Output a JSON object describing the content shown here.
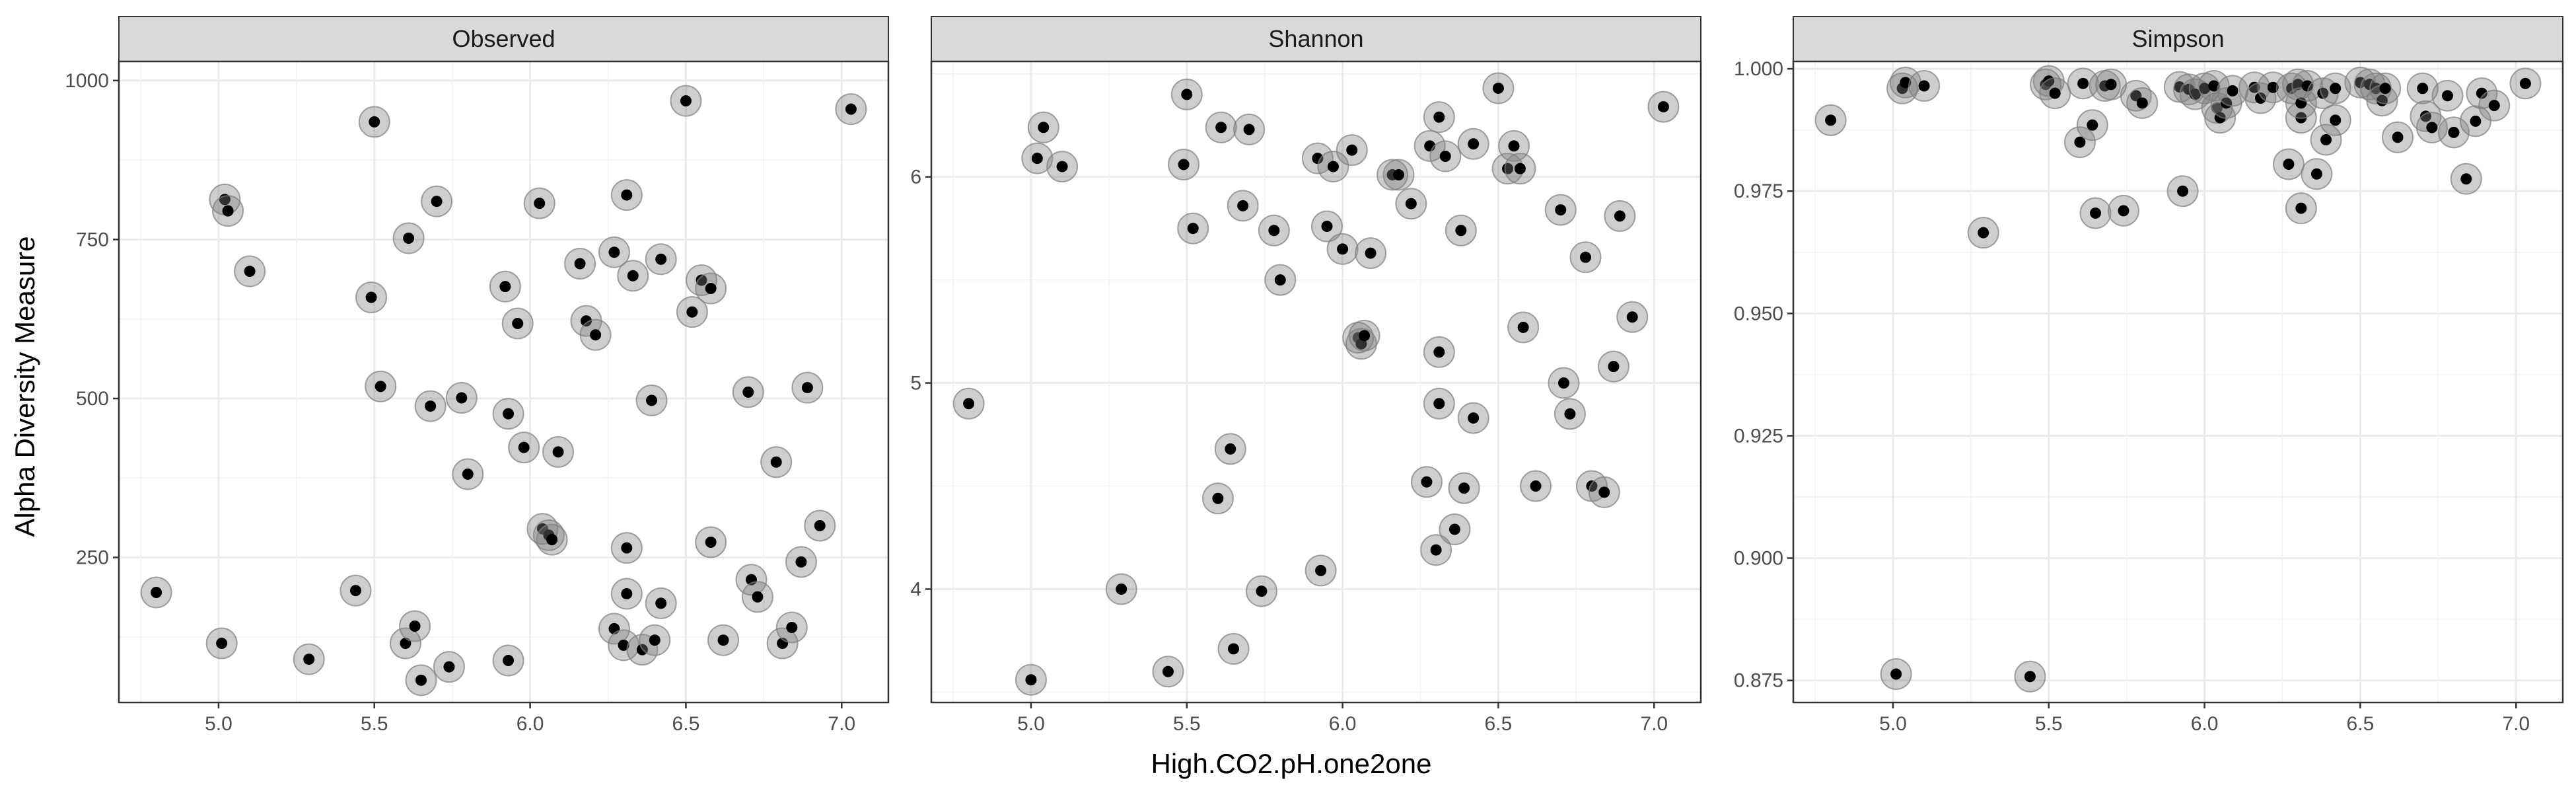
{
  "chart_data": {
    "type": "scatter",
    "xlabel": "High.CO2.pH.one2one",
    "ylabel": "Alpha Diversity Measure",
    "grid": true,
    "style": {
      "point_color": "#000000",
      "halo_color": "#7f7f7f",
      "strip_fill": "#d9d9d9"
    },
    "panels": [
      {
        "name": "Observed",
        "xlim": [
          4.68,
          7.15
        ],
        "ylim": [
          22,
          1030
        ],
        "xticks": [
          "5.0",
          "5.5",
          "6.0",
          "6.5",
          "7.0"
        ],
        "yticks": [
          "250",
          "500",
          "750",
          "1000"
        ],
        "points": [
          [
            4.8,
            195
          ],
          [
            5.02,
            813
          ],
          [
            5.03,
            795
          ],
          [
            5.1,
            700
          ],
          [
            5.01,
            115
          ],
          [
            5.29,
            90
          ],
          [
            5.44,
            198
          ],
          [
            5.5,
            935
          ],
          [
            5.49,
            659
          ],
          [
            5.52,
            519
          ],
          [
            5.61,
            752
          ],
          [
            5.7,
            810
          ],
          [
            5.6,
            115
          ],
          [
            5.63,
            142
          ],
          [
            5.65,
            57
          ],
          [
            5.68,
            488
          ],
          [
            5.74,
            78
          ],
          [
            5.78,
            501
          ],
          [
            5.8,
            381
          ],
          [
            5.92,
            676
          ],
          [
            5.93,
            476
          ],
          [
            5.96,
            618
          ],
          [
            5.98,
            423
          ],
          [
            5.93,
            88
          ],
          [
            6.03,
            807
          ],
          [
            6.04,
            295
          ],
          [
            6.06,
            285
          ],
          [
            6.07,
            278
          ],
          [
            6.09,
            416
          ],
          [
            6.16,
            712
          ],
          [
            6.18,
            622
          ],
          [
            6.21,
            600
          ],
          [
            6.27,
            730
          ],
          [
            6.31,
            820
          ],
          [
            6.33,
            693
          ],
          [
            6.31,
            265
          ],
          [
            6.31,
            193
          ],
          [
            6.27,
            138
          ],
          [
            6.3,
            112
          ],
          [
            6.36,
            105
          ],
          [
            6.4,
            120
          ],
          [
            6.42,
            178
          ],
          [
            6.39,
            497
          ],
          [
            6.42,
            719
          ],
          [
            6.52,
            636
          ],
          [
            6.55,
            686
          ],
          [
            6.58,
            673
          ],
          [
            6.5,
            968
          ],
          [
            6.58,
            274
          ],
          [
            6.62,
            120
          ],
          [
            6.7,
            510
          ],
          [
            6.71,
            215
          ],
          [
            6.73,
            188
          ],
          [
            6.79,
            400
          ],
          [
            6.81,
            115
          ],
          [
            6.84,
            140
          ],
          [
            6.87,
            243
          ],
          [
            6.89,
            517
          ],
          [
            6.93,
            300
          ],
          [
            7.03,
            955
          ]
        ]
      },
      {
        "name": "Shannon",
        "xlim": [
          4.68,
          7.15
        ],
        "ylim": [
          3.45,
          6.56
        ],
        "xticks": [
          "5.0",
          "5.5",
          "6.0",
          "6.5",
          "7.0"
        ],
        "yticks": [
          "4",
          "5",
          "6"
        ],
        "points": [
          [
            4.8,
            4.9
          ],
          [
            5.0,
            3.56
          ],
          [
            5.02,
            6.09
          ],
          [
            5.04,
            6.24
          ],
          [
            5.1,
            6.05
          ],
          [
            5.29,
            4.0
          ],
          [
            5.44,
            3.6
          ],
          [
            5.49,
            6.06
          ],
          [
            5.5,
            6.4
          ],
          [
            5.52,
            5.75
          ],
          [
            5.6,
            4.44
          ],
          [
            5.61,
            6.24
          ],
          [
            5.64,
            4.68
          ],
          [
            5.65,
            3.71
          ],
          [
            5.68,
            5.86
          ],
          [
            5.7,
            6.23
          ],
          [
            5.74,
            3.99
          ],
          [
            5.78,
            5.74
          ],
          [
            5.8,
            5.5
          ],
          [
            5.92,
            6.09
          ],
          [
            5.93,
            4.09
          ],
          [
            5.95,
            5.76
          ],
          [
            5.97,
            6.05
          ],
          [
            6.0,
            5.65
          ],
          [
            6.03,
            6.13
          ],
          [
            6.05,
            5.22
          ],
          [
            6.06,
            5.19
          ],
          [
            6.07,
            5.23
          ],
          [
            6.09,
            5.63
          ],
          [
            6.16,
            6.01
          ],
          [
            6.18,
            6.01
          ],
          [
            6.22,
            5.87
          ],
          [
            6.27,
            4.52
          ],
          [
            6.28,
            6.15
          ],
          [
            6.3,
            4.19
          ],
          [
            6.31,
            6.29
          ],
          [
            6.31,
            5.15
          ],
          [
            6.31,
            4.9
          ],
          [
            6.33,
            6.1
          ],
          [
            6.36,
            4.29
          ],
          [
            6.38,
            5.74
          ],
          [
            6.39,
            4.49
          ],
          [
            6.42,
            4.83
          ],
          [
            6.42,
            6.16
          ],
          [
            6.5,
            6.43
          ],
          [
            6.53,
            6.04
          ],
          [
            6.55,
            6.15
          ],
          [
            6.57,
            6.04
          ],
          [
            6.58,
            5.27
          ],
          [
            6.62,
            4.5
          ],
          [
            6.7,
            5.84
          ],
          [
            6.71,
            5.0
          ],
          [
            6.73,
            4.85
          ],
          [
            6.78,
            5.61
          ],
          [
            6.8,
            4.5
          ],
          [
            6.84,
            4.47
          ],
          [
            6.87,
            5.08
          ],
          [
            6.89,
            5.81
          ],
          [
            6.93,
            5.32
          ],
          [
            7.03,
            6.34
          ]
        ]
      },
      {
        "name": "Simpson",
        "xlim": [
          4.68,
          7.15
        ],
        "ylim": [
          0.8705,
          1.0015
        ],
        "xticks": [
          "5.0",
          "5.5",
          "6.0",
          "6.5",
          "7.0"
        ],
        "yticks": [
          "0.875",
          "0.900",
          "0.925",
          "0.950",
          "0.975",
          "1.000"
        ],
        "points": [
          [
            4.8,
            0.9895
          ],
          [
            5.01,
            0.8763
          ],
          [
            5.03,
            0.996
          ],
          [
            5.04,
            0.9972
          ],
          [
            5.1,
            0.9965
          ],
          [
            5.29,
            0.9665
          ],
          [
            5.44,
            0.8758
          ],
          [
            5.49,
            0.9968
          ],
          [
            5.5,
            0.9975
          ],
          [
            5.52,
            0.995
          ],
          [
            5.6,
            0.985
          ],
          [
            5.61,
            0.997
          ],
          [
            5.64,
            0.9885
          ],
          [
            5.65,
            0.9705
          ],
          [
            5.68,
            0.9965
          ],
          [
            5.7,
            0.9968
          ],
          [
            5.74,
            0.971
          ],
          [
            5.78,
            0.9945
          ],
          [
            5.8,
            0.993
          ],
          [
            5.92,
            0.9963
          ],
          [
            5.93,
            0.975
          ],
          [
            5.95,
            0.9958
          ],
          [
            5.97,
            0.9948
          ],
          [
            6.0,
            0.996
          ],
          [
            6.03,
            0.9965
          ],
          [
            6.04,
            0.992
          ],
          [
            6.05,
            0.99
          ],
          [
            6.07,
            0.993
          ],
          [
            6.09,
            0.9955
          ],
          [
            6.16,
            0.9962
          ],
          [
            6.18,
            0.994
          ],
          [
            6.22,
            0.9962
          ],
          [
            6.27,
            0.9805
          ],
          [
            6.28,
            0.996
          ],
          [
            6.3,
            0.9968
          ],
          [
            6.31,
            0.9715
          ],
          [
            6.31,
            0.99
          ],
          [
            6.31,
            0.993
          ],
          [
            6.33,
            0.9965
          ],
          [
            6.36,
            0.9785
          ],
          [
            6.38,
            0.995
          ],
          [
            6.39,
            0.9855
          ],
          [
            6.42,
            0.9895
          ],
          [
            6.42,
            0.996
          ],
          [
            6.5,
            0.9972
          ],
          [
            6.53,
            0.9968
          ],
          [
            6.55,
            0.996
          ],
          [
            6.57,
            0.9935
          ],
          [
            6.58,
            0.996
          ],
          [
            6.62,
            0.986
          ],
          [
            6.7,
            0.996
          ],
          [
            6.71,
            0.9903
          ],
          [
            6.73,
            0.988
          ],
          [
            6.78,
            0.9945
          ],
          [
            6.8,
            0.987
          ],
          [
            6.84,
            0.9775
          ],
          [
            6.87,
            0.9893
          ],
          [
            6.89,
            0.995
          ],
          [
            6.93,
            0.9925
          ],
          [
            7.03,
            0.997
          ]
        ]
      }
    ]
  }
}
